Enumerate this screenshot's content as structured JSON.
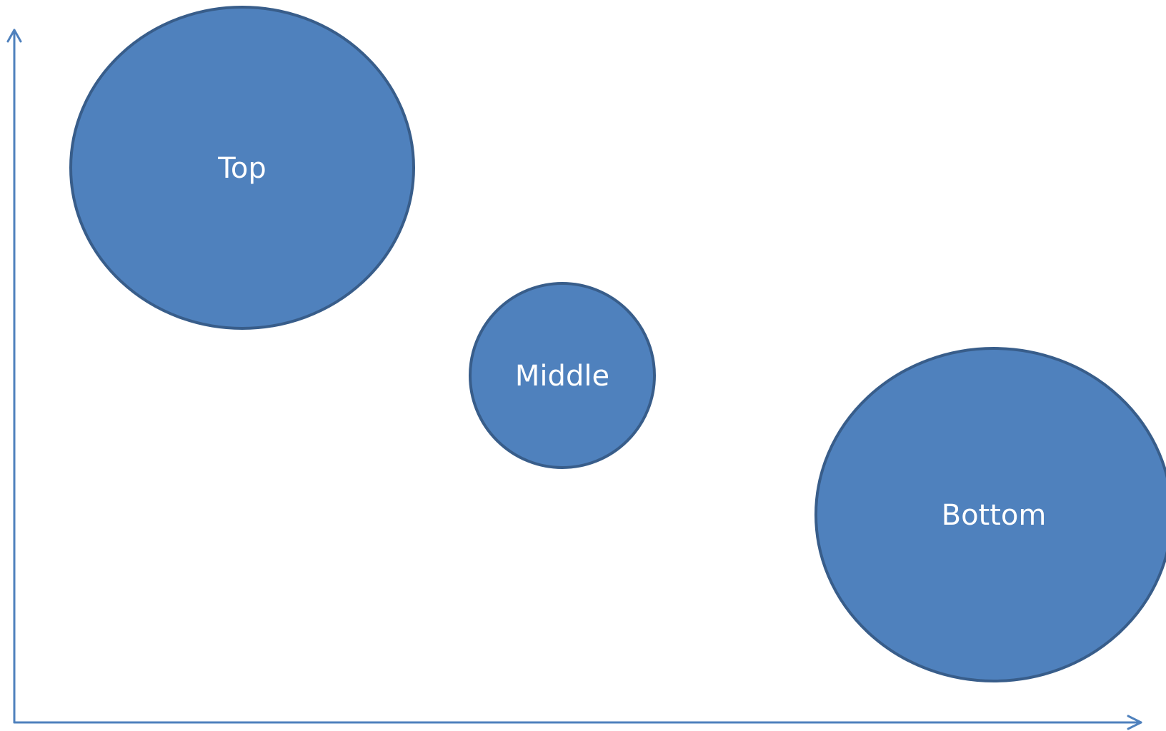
{
  "diagram": {
    "colors": {
      "axis": "#4f81bd",
      "bubble_fill": "#4f81bd",
      "bubble_outline": "#385d8a",
      "label_text": "#ffffff"
    },
    "bubbles": [
      {
        "label": "Top"
      },
      {
        "label": "Middle"
      },
      {
        "label": "Bottom"
      }
    ]
  }
}
